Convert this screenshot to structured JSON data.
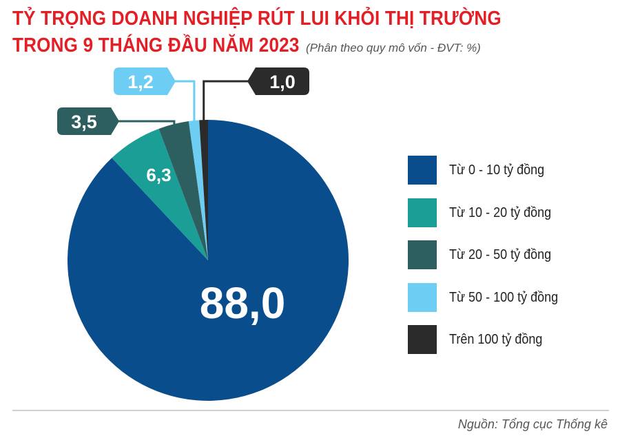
{
  "header": {
    "title_line1": "TỶ TRỌNG DOANH NGHIỆP RÚT LUI KHỎI THỊ TRƯỜNG",
    "title_line2": "TRONG 9 THÁNG ĐẦU NĂM 2023",
    "subtitle": "(Phân theo quy mô vốn - ĐVT: %)"
  },
  "colors": {
    "title": "#e31e24",
    "series": [
      "#0a4d8c",
      "#1a9e96",
      "#2d5f60",
      "#6ecdf2",
      "#2b2b2b"
    ]
  },
  "chart_data": {
    "type": "pie",
    "title": "TỶ TRỌNG DOANH NGHIỆP RÚT LUI KHỎI THỊ TRƯỜNG TRONG 9 THÁNG ĐẦU NĂM 2023",
    "unit": "%",
    "categories": [
      "Từ 0 - 10 tỷ đồng",
      "Từ 10 - 20 tỷ đồng",
      "Từ 20 - 50 tỷ đồng",
      "Từ 50 - 100 tỷ đồng",
      "Trên 100 tỷ đồng"
    ],
    "values": [
      88.0,
      6.3,
      3.5,
      1.2,
      1.0
    ],
    "value_labels": [
      "88,0",
      "6,3",
      "3,5",
      "1,2",
      "1,0"
    ],
    "legend_position": "right"
  },
  "source": "Nguồn: Tổng cục Thống kê"
}
